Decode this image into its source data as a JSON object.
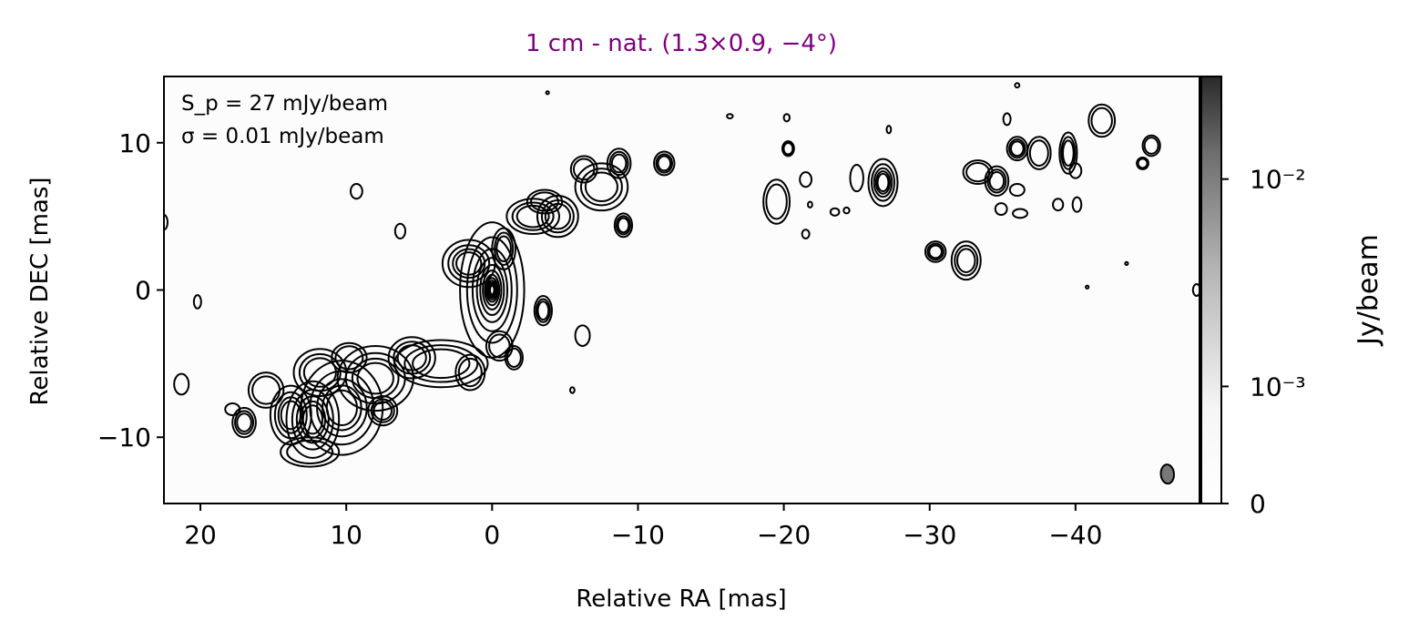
{
  "chart_data": {
    "type": "contour",
    "title": "1 cm - nat. (1.3×0.9, −4°)",
    "title_color": "#800080",
    "xlabel": "Relative RA [mas]",
    "ylabel": "Relative DEC [mas]",
    "xlim": [
      22.5,
      -48.5
    ],
    "ylim": [
      -14.5,
      14.5
    ],
    "x_ticks": [
      20,
      10,
      0,
      -10,
      -20,
      -30,
      -40
    ],
    "x_tick_labels": [
      "20",
      "10",
      "0",
      "−10",
      "−20",
      "−30",
      "−40"
    ],
    "y_ticks": [
      10,
      0,
      -10
    ],
    "y_tick_labels": [
      "10",
      "0",
      "−10"
    ],
    "annotation_line1": "S_p = 27 mJy/beam",
    "annotation_line2": "σ = 0.01 mJy/beam",
    "colorbar": {
      "label": "Jy/beam",
      "scale": "log",
      "ticks": [
        0,
        0.001,
        0.01
      ],
      "tick_labels": [
        "0",
        "10⁻³",
        "10⁻²"
      ],
      "max": 0.027
    },
    "peak_flux_mJy_per_beam": 27,
    "rms_mJy_per_beam": 0.01,
    "beam": {
      "major_mas": 1.3,
      "minor_mas": 0.9,
      "pa_deg": -4,
      "x": -46.3,
      "y": -12.5
    },
    "components": [
      {
        "x": 0.0,
        "y": 0.0,
        "rx": 2.2,
        "ry": 4.6,
        "levels": 12
      },
      {
        "x": 1.6,
        "y": 1.8,
        "rx": 1.8,
        "ry": 1.6,
        "levels": 4
      },
      {
        "x": -0.8,
        "y": 2.8,
        "rx": 0.8,
        "ry": 1.4,
        "levels": 3
      },
      {
        "x": -0.5,
        "y": -3.8,
        "rx": 0.9,
        "ry": 1.0,
        "levels": 2
      },
      {
        "x": -1.5,
        "y": -4.6,
        "rx": 0.6,
        "ry": 0.8,
        "levels": 2
      },
      {
        "x": -2.8,
        "y": 5.0,
        "rx": 1.8,
        "ry": 1.2,
        "levels": 3
      },
      {
        "x": -4.5,
        "y": 5.0,
        "rx": 1.4,
        "ry": 1.4,
        "levels": 3
      },
      {
        "x": -3.6,
        "y": 6.0,
        "rx": 1.2,
        "ry": 0.8,
        "levels": 2
      },
      {
        "x": -7.5,
        "y": 7.0,
        "rx": 1.8,
        "ry": 1.6,
        "levels": 3
      },
      {
        "x": -6.3,
        "y": 8.2,
        "rx": 0.9,
        "ry": 0.9,
        "levels": 2
      },
      {
        "x": -8.7,
        "y": 8.6,
        "rx": 0.8,
        "ry": 1.0,
        "levels": 3
      },
      {
        "x": -9.0,
        "y": 4.4,
        "rx": 0.6,
        "ry": 0.8,
        "levels": 3
      },
      {
        "x": -11.8,
        "y": 8.6,
        "rx": 0.7,
        "ry": 0.8,
        "levels": 3
      },
      {
        "x": -3.5,
        "y": -1.4,
        "rx": 0.6,
        "ry": 1.0,
        "levels": 3
      },
      {
        "x": -6.2,
        "y": -3.1,
        "rx": 0.5,
        "ry": 0.7,
        "levels": 1
      },
      {
        "x": -5.5,
        "y": -6.8,
        "rx": 0.15,
        "ry": 0.2,
        "levels": 1
      },
      {
        "x": -3.8,
        "y": 13.4,
        "rx": 0.1,
        "ry": 0.1,
        "levels": 1
      },
      {
        "x": 3.5,
        "y": -5.0,
        "rx": 3.2,
        "ry": 1.6,
        "levels": 3
      },
      {
        "x": 1.5,
        "y": -5.6,
        "rx": 1.0,
        "ry": 1.2,
        "levels": 2
      },
      {
        "x": 5.5,
        "y": -4.6,
        "rx": 1.6,
        "ry": 1.4,
        "levels": 3
      },
      {
        "x": 8.0,
        "y": -6.0,
        "rx": 2.6,
        "ry": 2.2,
        "levels": 4
      },
      {
        "x": 10.3,
        "y": -8.0,
        "rx": 2.8,
        "ry": 3.2,
        "levels": 5
      },
      {
        "x": 12.3,
        "y": -8.8,
        "rx": 1.8,
        "ry": 2.6,
        "levels": 5
      },
      {
        "x": 13.8,
        "y": -8.5,
        "rx": 1.4,
        "ry": 2.0,
        "levels": 4
      },
      {
        "x": 11.8,
        "y": -5.6,
        "rx": 1.8,
        "ry": 1.6,
        "levels": 3
      },
      {
        "x": 9.8,
        "y": -4.6,
        "rx": 1.2,
        "ry": 1.0,
        "levels": 2
      },
      {
        "x": 15.5,
        "y": -6.8,
        "rx": 1.2,
        "ry": 1.2,
        "levels": 2
      },
      {
        "x": 12.5,
        "y": -11.0,
        "rx": 2.0,
        "ry": 1.0,
        "levels": 2
      },
      {
        "x": 7.5,
        "y": -8.2,
        "rx": 1.0,
        "ry": 1.0,
        "levels": 3
      },
      {
        "x": 17.0,
        "y": -9.0,
        "rx": 0.8,
        "ry": 1.0,
        "levels": 3
      },
      {
        "x": 17.8,
        "y": -8.1,
        "rx": 0.5,
        "ry": 0.4,
        "levels": 1
      },
      {
        "x": 21.3,
        "y": -6.4,
        "rx": 0.5,
        "ry": 0.7,
        "levels": 1
      },
      {
        "x": 20.2,
        "y": -0.8,
        "rx": 0.25,
        "ry": 0.45,
        "levels": 1
      },
      {
        "x": 22.5,
        "y": 4.6,
        "rx": 0.25,
        "ry": 0.5,
        "levels": 1
      },
      {
        "x": 9.3,
        "y": 6.7,
        "rx": 0.4,
        "ry": 0.5,
        "levels": 1
      },
      {
        "x": 6.3,
        "y": 4.0,
        "rx": 0.35,
        "ry": 0.5,
        "levels": 1
      },
      {
        "x": -19.5,
        "y": 6.0,
        "rx": 0.9,
        "ry": 1.5,
        "levels": 2
      },
      {
        "x": -20.3,
        "y": 9.6,
        "rx": 0.4,
        "ry": 0.5,
        "levels": 2
      },
      {
        "x": -20.2,
        "y": 11.7,
        "rx": 0.2,
        "ry": 0.25,
        "levels": 1
      },
      {
        "x": -16.3,
        "y": 11.8,
        "rx": 0.2,
        "ry": 0.15,
        "levels": 1
      },
      {
        "x": -21.5,
        "y": 7.5,
        "rx": 0.4,
        "ry": 0.5,
        "levels": 1
      },
      {
        "x": -21.8,
        "y": 5.8,
        "rx": 0.15,
        "ry": 0.2,
        "levels": 1
      },
      {
        "x": -21.5,
        "y": 3.8,
        "rx": 0.25,
        "ry": 0.3,
        "levels": 1
      },
      {
        "x": -23.5,
        "y": 5.3,
        "rx": 0.3,
        "ry": 0.25,
        "levels": 1
      },
      {
        "x": -24.3,
        "y": 5.4,
        "rx": 0.2,
        "ry": 0.2,
        "levels": 1
      },
      {
        "x": -25.0,
        "y": 7.6,
        "rx": 0.45,
        "ry": 0.9,
        "levels": 1
      },
      {
        "x": -26.8,
        "y": 7.3,
        "rx": 1.0,
        "ry": 1.6,
        "levels": 5
      },
      {
        "x": -27.2,
        "y": 10.9,
        "rx": 0.15,
        "ry": 0.25,
        "levels": 1
      },
      {
        "x": -30.4,
        "y": 2.6,
        "rx": 0.7,
        "ry": 0.7,
        "levels": 3
      },
      {
        "x": -32.5,
        "y": 2.0,
        "rx": 1.0,
        "ry": 1.3,
        "levels": 3
      },
      {
        "x": -33.3,
        "y": 8.0,
        "rx": 1.0,
        "ry": 0.8,
        "levels": 2
      },
      {
        "x": -34.6,
        "y": 7.4,
        "rx": 0.8,
        "ry": 1.0,
        "levels": 3
      },
      {
        "x": -34.9,
        "y": 5.5,
        "rx": 0.4,
        "ry": 0.4,
        "levels": 1
      },
      {
        "x": -36.2,
        "y": 5.2,
        "rx": 0.5,
        "ry": 0.3,
        "levels": 1
      },
      {
        "x": -36.0,
        "y": 6.8,
        "rx": 0.5,
        "ry": 0.4,
        "levels": 1
      },
      {
        "x": -36.0,
        "y": 9.6,
        "rx": 0.7,
        "ry": 0.8,
        "levels": 3
      },
      {
        "x": -37.5,
        "y": 9.3,
        "rx": 0.8,
        "ry": 1.1,
        "levels": 2
      },
      {
        "x": -35.3,
        "y": 11.6,
        "rx": 0.25,
        "ry": 0.4,
        "levels": 1
      },
      {
        "x": -36.0,
        "y": 13.9,
        "rx": 0.15,
        "ry": 0.15,
        "levels": 1
      },
      {
        "x": -39.5,
        "y": 9.3,
        "rx": 0.6,
        "ry": 1.4,
        "levels": 3
      },
      {
        "x": -40.0,
        "y": 8.1,
        "rx": 0.4,
        "ry": 0.5,
        "levels": 1
      },
      {
        "x": -38.8,
        "y": 5.8,
        "rx": 0.35,
        "ry": 0.4,
        "levels": 1
      },
      {
        "x": -40.1,
        "y": 5.8,
        "rx": 0.3,
        "ry": 0.5,
        "levels": 1
      },
      {
        "x": -41.8,
        "y": 11.5,
        "rx": 0.9,
        "ry": 1.1,
        "levels": 2
      },
      {
        "x": -45.2,
        "y": 9.8,
        "rx": 0.6,
        "ry": 0.7,
        "levels": 2
      },
      {
        "x": -44.6,
        "y": 8.6,
        "rx": 0.4,
        "ry": 0.4,
        "levels": 2
      },
      {
        "x": -43.5,
        "y": 1.8,
        "rx": 0.1,
        "ry": 0.1,
        "levels": 1
      },
      {
        "x": -40.8,
        "y": 0.2,
        "rx": 0.1,
        "ry": 0.1,
        "levels": 1
      },
      {
        "x": -48.3,
        "y": 0.0,
        "rx": 0.25,
        "ry": 0.4,
        "levels": 1
      }
    ]
  }
}
